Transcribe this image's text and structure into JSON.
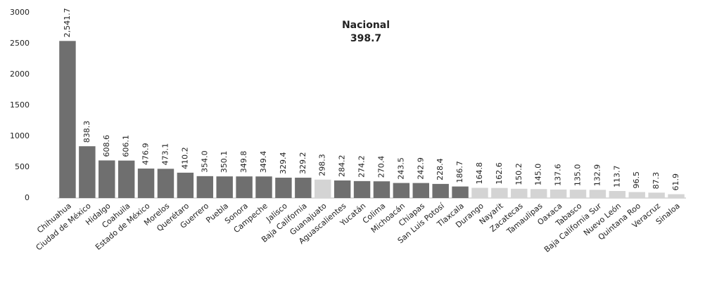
{
  "chart_data": {
    "type": "bar",
    "annotation": {
      "name": "Nacional",
      "value": 398.7
    },
    "categories": [
      "Chihuahua",
      "Ciudad de México",
      "Hidalgo",
      "Coahuila",
      "Estado de México",
      "Morelos",
      "Querétaro",
      "Guerrero",
      "Puebla",
      "Sonora",
      "Campeche",
      "Jalisco",
      "Baja California",
      "Guanajuato",
      "Aguascalientes",
      "Yucatán",
      "Colima",
      "Michoacán",
      "Chiapas",
      "San Luis Potosí",
      "Tlaxcala",
      "Durango",
      "Nayarit",
      "Zacatecas",
      "Tamaulipas",
      "Oaxaca",
      "Tabasco",
      "Baja California Sur",
      "Nuevo León",
      "Quintana Roo",
      "Veracruz",
      "Sinaloa"
    ],
    "values": [
      2541.7,
      838.3,
      608.6,
      606.1,
      476.9,
      473.1,
      410.2,
      354.0,
      350.1,
      349.8,
      349.4,
      329.4,
      329.2,
      298.3,
      284.2,
      274.2,
      270.4,
      243.5,
      242.9,
      228.4,
      186.7,
      164.8,
      162.6,
      150.2,
      145.0,
      137.6,
      135.0,
      132.9,
      113.7,
      96.5,
      87.3,
      61.9
    ],
    "value_labels": [
      "2,541.7",
      "838.3",
      "608.6",
      "606.1",
      "476.9",
      "473.1",
      "410.2",
      "354.0",
      "350.1",
      "349.8",
      "349.4",
      "329.4",
      "329.2",
      "298.3",
      "284.2",
      "274.2",
      "270.4",
      "243.5",
      "242.9",
      "228.4",
      "186.7",
      "164.8",
      "162.6",
      "150.2",
      "145.0",
      "137.6",
      "135.0",
      "132.9",
      "113.7",
      "96.5",
      "87.3",
      "61.9"
    ],
    "colors": [
      "#6f6f6f",
      "#6f6f6f",
      "#6f6f6f",
      "#6f6f6f",
      "#6f6f6f",
      "#6f6f6f",
      "#6f6f6f",
      "#6f6f6f",
      "#6f6f6f",
      "#6f6f6f",
      "#6f6f6f",
      "#6f6f6f",
      "#6f6f6f",
      "#d4d4d4",
      "#6f6f6f",
      "#6f6f6f",
      "#6f6f6f",
      "#6f6f6f",
      "#6f6f6f",
      "#6f6f6f",
      "#6f6f6f",
      "#d4d4d4",
      "#d4d4d4",
      "#d4d4d4",
      "#d4d4d4",
      "#d4d4d4",
      "#d4d4d4",
      "#d4d4d4",
      "#d4d4d4",
      "#d4d4d4",
      "#d4d4d4",
      "#d4d4d4"
    ],
    "ylim": [
      0,
      3000
    ],
    "yticks": [
      0,
      500,
      1000,
      1500,
      2000,
      2500,
      3000
    ],
    "grid": false
  }
}
